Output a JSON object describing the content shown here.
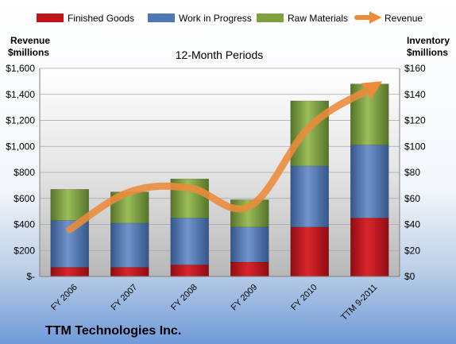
{
  "chart_data": {
    "type": "bar",
    "subtitle": "12-Month Periods",
    "company": "TTM Technologies Inc.",
    "y_left_label_line1": "Revenue",
    "y_left_label_line2": "$millions",
    "y_right_label_line1": "Inventory",
    "y_right_label_line2": "$millions",
    "categories": [
      "FY 2006",
      "FY 2007",
      "FY 2008",
      "FY 2009",
      "FY 2010",
      "TTM 9-2011"
    ],
    "series": [
      {
        "name": "Finished Goods",
        "axis": "right",
        "stack": true,
        "color": "#c0141c",
        "values": [
          7,
          7,
          9,
          11,
          38,
          45
        ]
      },
      {
        "name": "Work in Progress",
        "axis": "right",
        "stack": true,
        "color": "#4e77b3",
        "values": [
          36,
          34,
          36,
          27,
          47,
          56
        ]
      },
      {
        "name": "Raw Materials",
        "axis": "right",
        "stack": true,
        "color": "#7ea13d",
        "values": [
          24,
          24,
          30,
          21,
          50,
          47
        ]
      },
      {
        "name": "Revenue",
        "axis": "left",
        "type": "line",
        "color": "#ec8b3a",
        "values": [
          360,
          650,
          680,
          540,
          1150,
          1440
        ]
      }
    ],
    "y_left": {
      "ylim": [
        0,
        1600
      ],
      "ticks": [
        "$-",
        "$200",
        "$400",
        "$600",
        "$800",
        "$1,000",
        "$1,200",
        "$1,400",
        "$1,600"
      ]
    },
    "y_right": {
      "ylim": [
        0,
        160
      ],
      "ticks": [
        "$0",
        "$20",
        "$40",
        "$60",
        "$80",
        "$100",
        "$120",
        "$140",
        "$160"
      ]
    },
    "legend_position": "top",
    "grid": true
  }
}
